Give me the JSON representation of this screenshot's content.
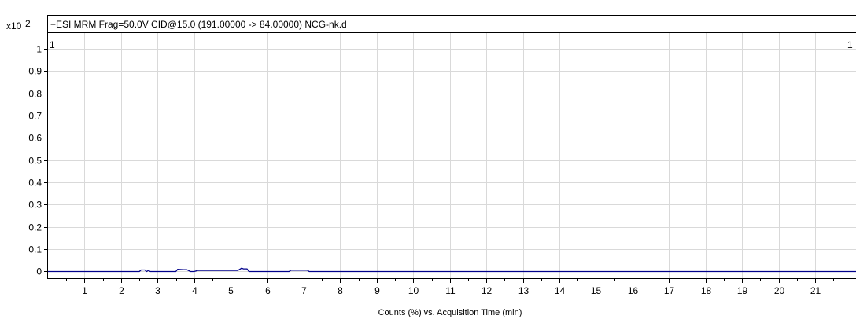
{
  "chart_data": {
    "type": "line",
    "title": "+ESI MRM Frag=50.0V CID@15.0 (191.00000 -> 84.00000) NCG-nk.d",
    "y_scale_label": "x10",
    "y_scale_exponent": "2",
    "xlabel": "Counts (%) vs. Acquisition Time (min)",
    "ylabel": "",
    "xlim": [
      0,
      22.4
    ],
    "ylim": [
      -0.03,
      1.07
    ],
    "x_ticks": [
      1,
      2,
      3,
      4,
      5,
      6,
      7,
      8,
      9,
      10,
      11,
      12,
      13,
      14,
      15,
      16,
      17,
      18,
      19,
      20,
      21
    ],
    "y_ticks": [
      0,
      0.1,
      0.2,
      0.3,
      0.4,
      0.5,
      0.6,
      0.7,
      0.8,
      0.9,
      1
    ],
    "y_tick_labels": [
      "0",
      "0.1",
      "0.2",
      "0.3",
      "0.4",
      "0.5",
      "0.6",
      "0.7",
      "0.8",
      "0.9",
      "1"
    ],
    "grid": true,
    "corner_labels": {
      "left": "1",
      "right": "1"
    },
    "series": [
      {
        "color": "#00008b",
        "x": [
          0,
          2.5,
          2.55,
          2.65,
          2.7,
          2.75,
          2.8,
          2.9,
          3.5,
          3.55,
          3.7,
          3.8,
          3.9,
          4.0,
          4.1,
          5.2,
          5.3,
          5.35,
          5.45,
          5.5,
          5.6,
          6.6,
          6.65,
          7.1,
          7.15,
          22.4
        ],
        "y": [
          0,
          0,
          0.007,
          0.007,
          0,
          0.005,
          0,
          0,
          0,
          0.01,
          0.008,
          0.008,
          0,
          0,
          0.005,
          0.005,
          0.015,
          0.012,
          0.012,
          0,
          0,
          0,
          0.006,
          0.006,
          0,
          0
        ]
      }
    ]
  },
  "colors": {
    "grid": "#d9d9d9",
    "axis": "#000000",
    "line": "#00008b",
    "background": "#ffffff"
  }
}
